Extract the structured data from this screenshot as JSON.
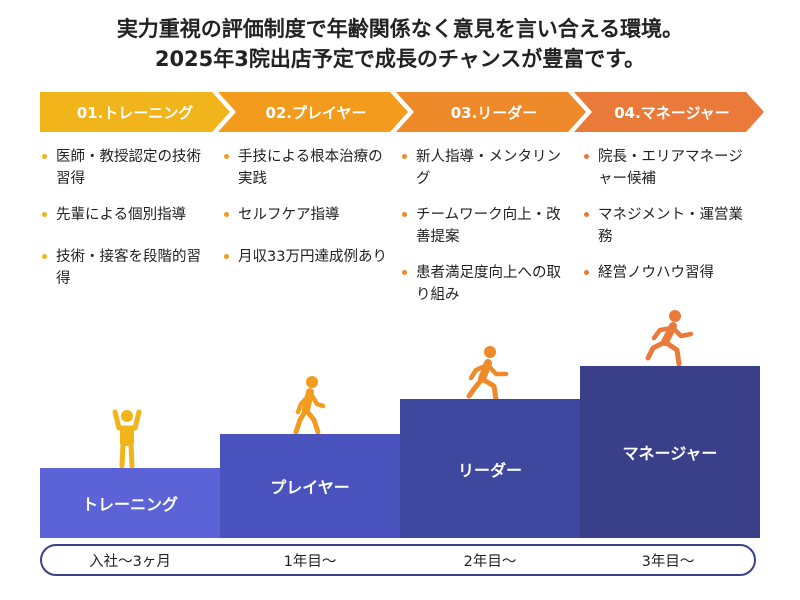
{
  "heading": {
    "line1": "実力重視の評価制度で年齢関係なく意見を言い合える環境。",
    "line2": "2025年3院出店予定で成長のチャンスが豊富です。"
  },
  "stages": [
    {
      "label": "01.トレーニング",
      "color": "#f2b41b"
    },
    {
      "label": "02.プレイヤー",
      "color": "#f29b1d"
    },
    {
      "label": "03.リーダー",
      "color": "#ef8a2b"
    },
    {
      "label": "04.マネージャー",
      "color": "#ea7a3a"
    }
  ],
  "bullets": [
    [
      "医師・教授認定の技術習得",
      "先輩による個別指導",
      "技術・接客を段階的習得"
    ],
    [
      "手技による根本治療の実践",
      "セルフケア指導",
      "月収33万円達成例あり"
    ],
    [
      "新人指導・メンタリング",
      "チームワーク向上・改善提案",
      "患者満足度向上への取り組み"
    ],
    [
      "院長・エリアマネージャー候補",
      "マネジメント・運営業務",
      "経営ノウハウ習得"
    ]
  ],
  "steps": [
    {
      "label": "トレーニング",
      "color": "#5b63d6"
    },
    {
      "label": "プレイヤー",
      "color": "#4a52bd"
    },
    {
      "label": "リーダー",
      "color": "#3f489f"
    },
    {
      "label": "マネージャー",
      "color": "#3a3f8a"
    }
  ],
  "figures": [
    {
      "icon": "person-arms-up-icon",
      "color": "#f2b41b"
    },
    {
      "icon": "person-walking-icon",
      "color": "#f29b1d"
    },
    {
      "icon": "person-running-icon",
      "color": "#ef8a2b"
    },
    {
      "icon": "person-sprinting-icon",
      "color": "#ea7a3a"
    }
  ],
  "timeline": [
    "入社〜3ヶ月",
    "1年目〜",
    "2年目〜",
    "3年目〜"
  ],
  "timeline_border_color": "#3d3f8c"
}
